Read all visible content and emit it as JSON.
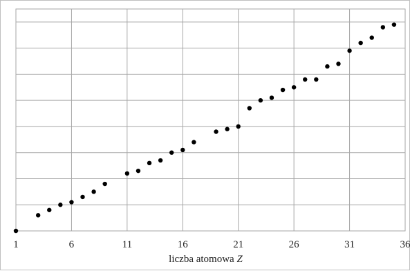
{
  "chart_data": {
    "type": "scatter",
    "title": "",
    "xlabel": "liczba atomowa",
    "xlabel_var": "Z",
    "ylabel": "",
    "xlim": [
      1,
      36
    ],
    "ylim": [
      0,
      8.5
    ],
    "x_ticks": [
      1,
      6,
      11,
      16,
      21,
      26,
      31,
      36
    ],
    "y_gridlines": [
      0,
      1,
      2,
      3,
      4,
      5,
      6,
      7,
      8,
      8.5
    ],
    "grid": true,
    "marker_color": "#000000",
    "points": [
      {
        "x": 1,
        "y": 0.0
      },
      {
        "x": 3,
        "y": 0.6
      },
      {
        "x": 4,
        "y": 0.8
      },
      {
        "x": 5,
        "y": 1.0
      },
      {
        "x": 6,
        "y": 1.1
      },
      {
        "x": 7,
        "y": 1.3
      },
      {
        "x": 8,
        "y": 1.5
      },
      {
        "x": 9,
        "y": 1.8
      },
      {
        "x": 11,
        "y": 2.2
      },
      {
        "x": 12,
        "y": 2.3
      },
      {
        "x": 13,
        "y": 2.6
      },
      {
        "x": 14,
        "y": 2.7
      },
      {
        "x": 15,
        "y": 3.0
      },
      {
        "x": 16,
        "y": 3.1
      },
      {
        "x": 17,
        "y": 3.4
      },
      {
        "x": 19,
        "y": 3.8
      },
      {
        "x": 20,
        "y": 3.9
      },
      {
        "x": 21,
        "y": 4.0
      },
      {
        "x": 22,
        "y": 4.7
      },
      {
        "x": 23,
        "y": 5.0
      },
      {
        "x": 24,
        "y": 5.1
      },
      {
        "x": 25,
        "y": 5.4
      },
      {
        "x": 26,
        "y": 5.5
      },
      {
        "x": 27,
        "y": 5.8
      },
      {
        "x": 28,
        "y": 5.8
      },
      {
        "x": 29,
        "y": 6.3
      },
      {
        "x": 30,
        "y": 6.4
      },
      {
        "x": 31,
        "y": 6.9
      },
      {
        "x": 32,
        "y": 7.2
      },
      {
        "x": 33,
        "y": 7.4
      },
      {
        "x": 34,
        "y": 7.8
      },
      {
        "x": 35,
        "y": 7.9
      }
    ]
  }
}
